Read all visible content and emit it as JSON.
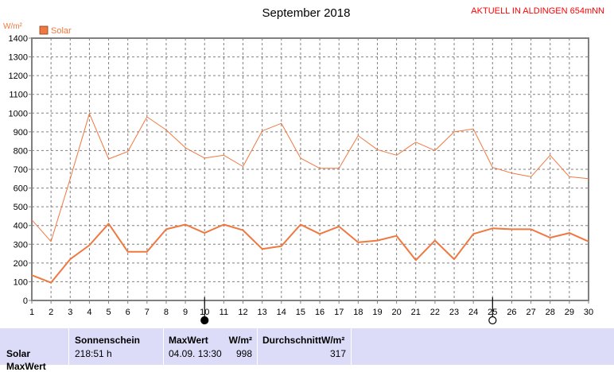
{
  "header": {
    "title": "September 2018",
    "station": "AKTUELL IN ALDINGEN 654mNN"
  },
  "colors": {
    "series": "#f07840",
    "axis": "#808080",
    "grid": "#808080",
    "station": "#ff0000",
    "footer_bg": "#dcdcf8"
  },
  "chart_data": {
    "type": "line",
    "title": "September 2018",
    "ylabel": "W/m²",
    "xlabel": "",
    "ylim": [
      0,
      1400
    ],
    "xlim": [
      1,
      30
    ],
    "y_ticks": [
      "0",
      "100",
      "200",
      "300",
      "400",
      "500",
      "600",
      "700",
      "800",
      "900",
      "1000",
      "1100",
      "1200",
      "1300",
      "1400"
    ],
    "x_ticks": [
      "1",
      "2",
      "3",
      "4",
      "5",
      "6",
      "7",
      "8",
      "9",
      "10",
      "11",
      "12",
      "13",
      "14",
      "15",
      "16",
      "17",
      "18",
      "19",
      "20",
      "21",
      "22",
      "23",
      "24",
      "25",
      "26",
      "27",
      "28",
      "29",
      "30"
    ],
    "grid": true,
    "legend": {
      "position": "top-left",
      "entries": [
        "Solar"
      ]
    },
    "x": [
      1,
      2,
      3,
      4,
      5,
      6,
      7,
      8,
      9,
      10,
      11,
      12,
      13,
      14,
      15,
      16,
      17,
      18,
      19,
      20,
      21,
      22,
      23,
      24,
      25,
      26,
      27,
      28,
      29,
      30
    ],
    "series": [
      {
        "name": "Solar",
        "role": "max",
        "values": [
          430,
          315,
          650,
          998,
          755,
          795,
          980,
          910,
          815,
          760,
          775,
          715,
          905,
          945,
          760,
          705,
          705,
          880,
          805,
          775,
          845,
          800,
          900,
          915,
          710,
          680,
          660,
          775,
          660,
          650
        ]
      },
      {
        "name": "Solar",
        "role": "mean",
        "values": [
          135,
          95,
          220,
          295,
          410,
          260,
          260,
          380,
          405,
          360,
          405,
          375,
          275,
          290,
          405,
          355,
          395,
          310,
          320,
          345,
          215,
          320,
          220,
          355,
          385,
          380,
          380,
          335,
          360,
          315
        ]
      }
    ],
    "moon_markers": [
      {
        "x": 10,
        "phase": "new"
      },
      {
        "x": 25,
        "phase": "full"
      }
    ]
  },
  "footer": {
    "row_label": "Solar",
    "row_label_next": "MaxWert",
    "sonnenschein_label": "Sonnenschein",
    "sonnenschein_value": "218:51 h",
    "maxwert_label": "MaxWert",
    "maxwert_unit": "W/m²",
    "maxwert_date": "04.09.  13:30",
    "maxwert_value": "998",
    "durchschnitt_label": "DurchschnittW/m²",
    "durchschnitt_value": "317"
  }
}
